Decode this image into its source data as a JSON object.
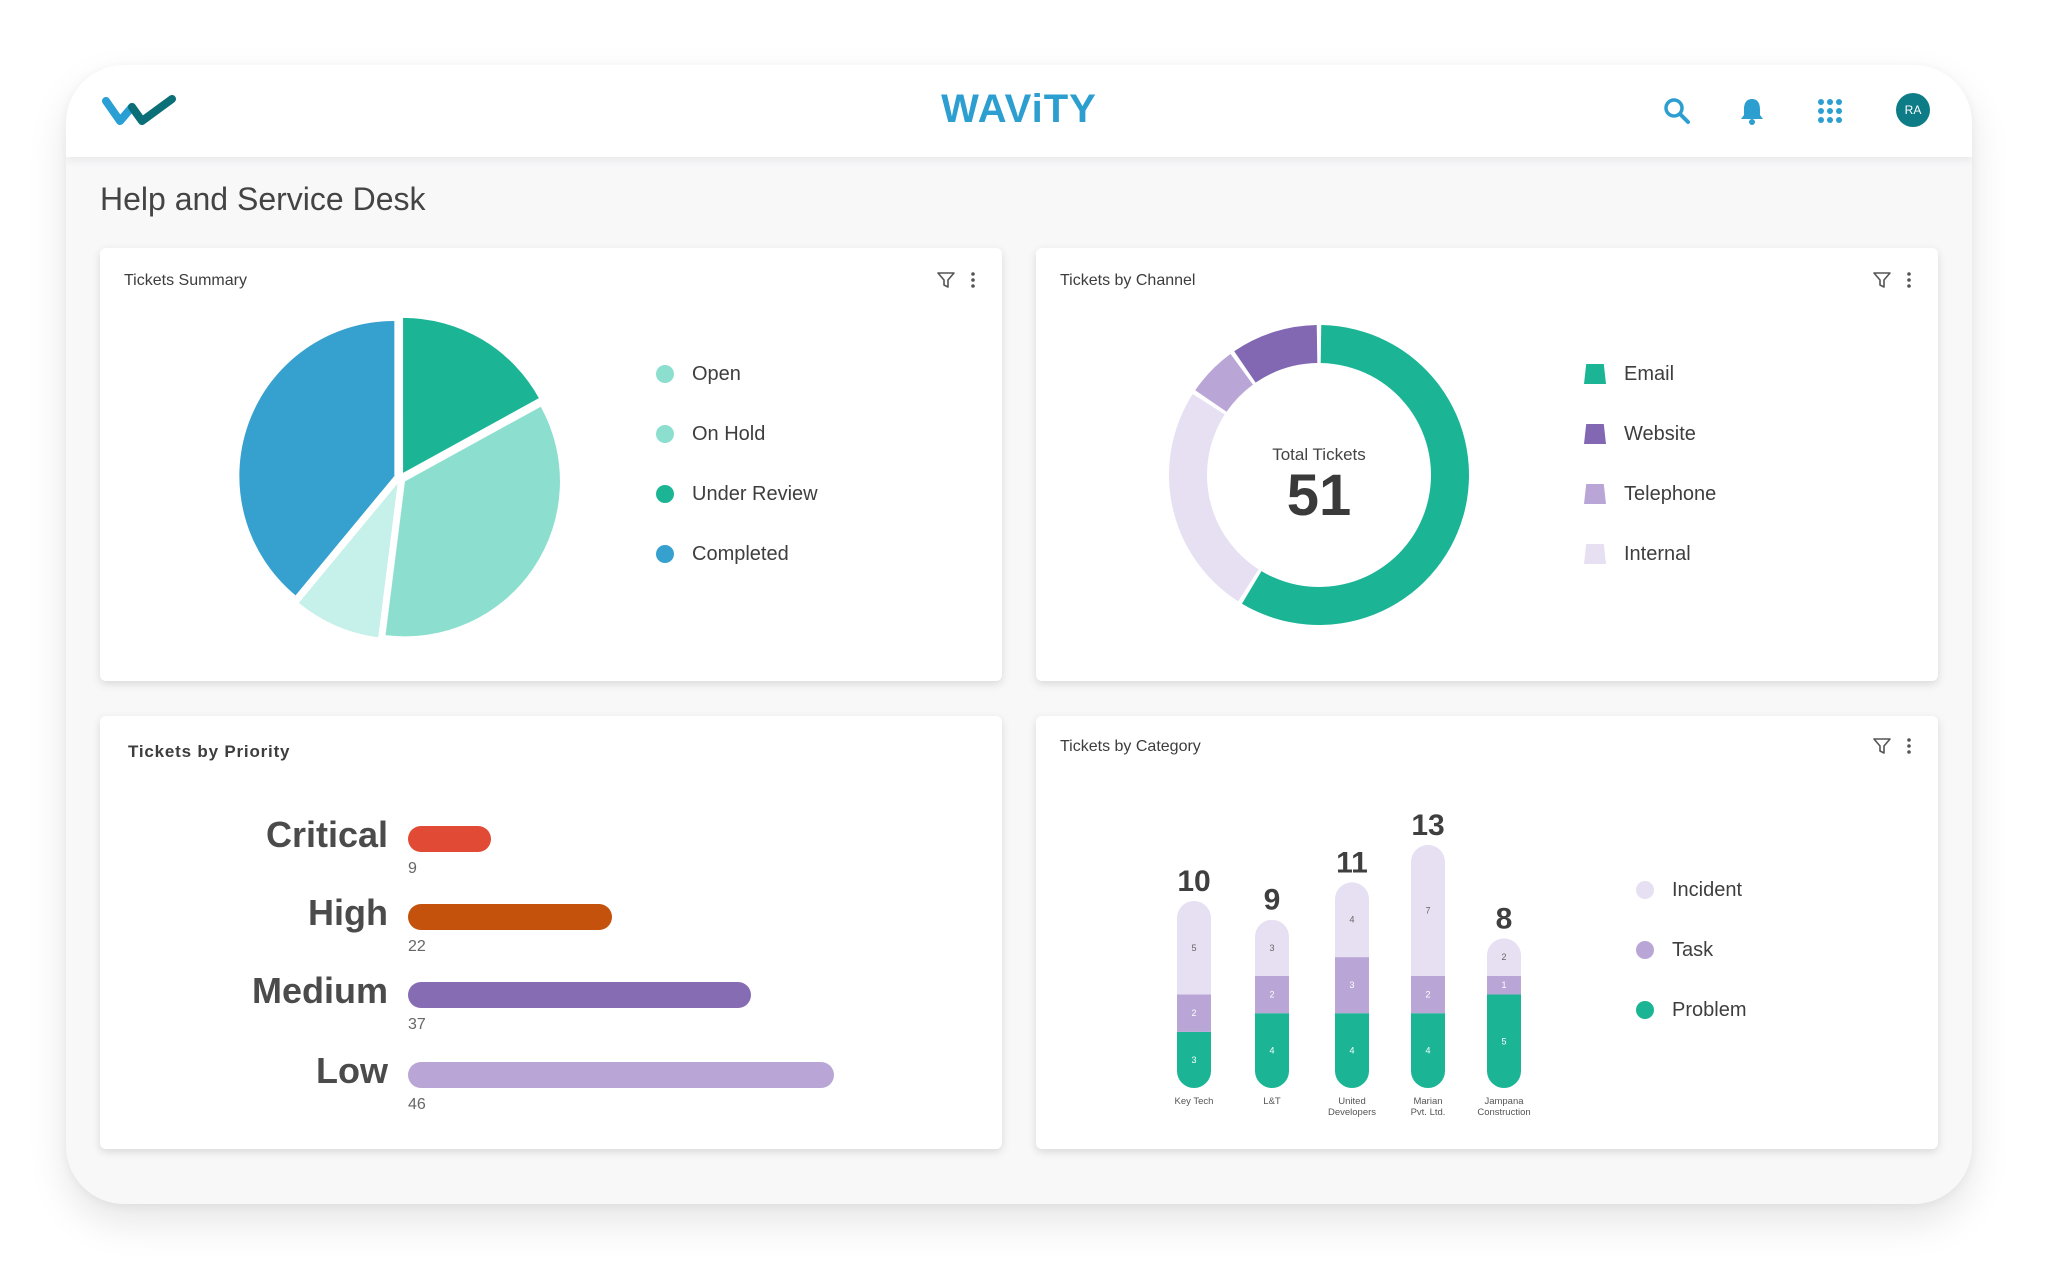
{
  "header": {
    "brand": "WAViTY",
    "avatar_initials": "RA",
    "colors": {
      "brand": "#2c9fd0",
      "logo_dark": "#0b6f78",
      "logo_light": "#2a9fd3"
    }
  },
  "page": {
    "title": "Help and Service Desk"
  },
  "summary": {
    "title": "Tickets Summary",
    "legend": [
      {
        "label": "Open",
        "color": "#8cdfcf"
      },
      {
        "label": "On Hold",
        "color": "#8cdfcf"
      },
      {
        "label": "Under Review",
        "color": "#1bb596"
      },
      {
        "label": "Completed",
        "color": "#36a0cf"
      }
    ]
  },
  "channel": {
    "title": "Tickets by Channel",
    "center_label": "Total Tickets",
    "total": "51",
    "legend": [
      {
        "label": "Email",
        "color": "#1bb596"
      },
      {
        "label": "Website",
        "color": "#8268b3"
      },
      {
        "label": "Telephone",
        "color": "#b9a6d6"
      },
      {
        "label": "Internal",
        "color": "#e6e0f2"
      }
    ]
  },
  "priority": {
    "title": "Tickets by Priority",
    "rows": [
      {
        "label": "Critical",
        "value": "9",
        "color": "#e14a35"
      },
      {
        "label": "High",
        "value": "22",
        "color": "#c4520c"
      },
      {
        "label": "Medium",
        "value": "37",
        "color": "#866cb3"
      },
      {
        "label": "Low",
        "value": "46",
        "color": "#b9a6d6"
      }
    ]
  },
  "category": {
    "title": "Tickets by Category",
    "legend": [
      {
        "label": "Incident",
        "color": "#e6e0f2"
      },
      {
        "label": "Task",
        "color": "#b9a6d6"
      },
      {
        "label": "Problem",
        "color": "#1bb596"
      }
    ]
  },
  "chart_data": [
    {
      "type": "pie",
      "title": "Tickets Summary",
      "categories": [
        "Under Review",
        "Open",
        "On Hold",
        "Completed"
      ],
      "values": [
        17,
        35,
        9,
        39
      ],
      "colors": [
        "#1bb596",
        "#8cdfcf",
        "#c6f0ea",
        "#36a0cf"
      ]
    },
    {
      "type": "pie",
      "title": "Tickets by Channel",
      "donut": true,
      "categories": [
        "Email",
        "Internal",
        "Telephone",
        "Website"
      ],
      "values": [
        30,
        13,
        3,
        5
      ],
      "colors": [
        "#1bb596",
        "#e6e0f2",
        "#b9a6d6",
        "#8268b3"
      ]
    },
    {
      "type": "bar",
      "orientation": "horizontal",
      "title": "Tickets by Priority",
      "categories": [
        "Critical",
        "High",
        "Medium",
        "Low"
      ],
      "values": [
        9,
        22,
        37,
        46
      ],
      "xlim": [
        0,
        46
      ]
    },
    {
      "type": "bar",
      "stacked": true,
      "title": "Tickets by Category",
      "categories": [
        [
          "Key Tech"
        ],
        [
          "L&T"
        ],
        [
          "United",
          "Developers"
        ],
        [
          "Marian",
          "Pvt. Ltd."
        ],
        [
          "Jampana",
          "Construction"
        ]
      ],
      "totals": [
        "10",
        "9",
        "11",
        "13",
        "8"
      ],
      "ylim": [
        0,
        13
      ],
      "series": [
        {
          "name": "Problem",
          "color": "#1bb596",
          "values": [
            3,
            4,
            4,
            4,
            5
          ]
        },
        {
          "name": "Task",
          "color": "#b9a6d6",
          "values": [
            2,
            2,
            3,
            2,
            1
          ]
        },
        {
          "name": "Incident",
          "color": "#e6e0f2",
          "values": [
            5,
            3,
            4,
            7,
            2
          ]
        }
      ]
    }
  ]
}
